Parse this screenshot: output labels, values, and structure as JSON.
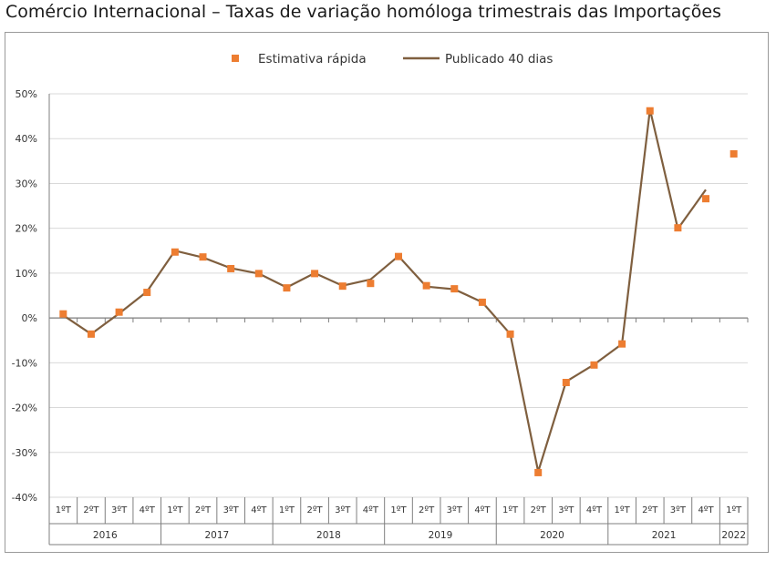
{
  "title": "Comércio Internacional – Taxas de variação homóloga trimestrais das Importações",
  "colors": {
    "marker": "#ED7D31",
    "line": "#7F5F3F",
    "grid": "#D9D9D9",
    "axis": "#7F7F7F"
  },
  "chart_data": {
    "type": "line",
    "title": "Comércio Internacional – Taxas de variação homóloga trimestrais das Importações",
    "xlabel": "",
    "ylabel": "",
    "ylim": [
      -40,
      50
    ],
    "yticks": [
      "50%",
      "40%",
      "30%",
      "20%",
      "10%",
      "0%",
      "-10%",
      "-20%",
      "-30%",
      "-40%"
    ],
    "grid": true,
    "legend_position": "top",
    "categories": [
      "1ºT",
      "2ºT",
      "3ºT",
      "4ºT",
      "1ºT",
      "2ºT",
      "3ºT",
      "4ºT",
      "1ºT",
      "2ºT",
      "3ºT",
      "4ºT",
      "1ºT",
      "2ºT",
      "3ºT",
      "4ºT",
      "1ºT",
      "2ºT",
      "3ºT",
      "4ºT",
      "1ºT",
      "2ºT",
      "3ºT",
      "4ºT",
      "1ºT"
    ],
    "years": [
      {
        "label": "2016",
        "count": 4
      },
      {
        "label": "2017",
        "count": 4
      },
      {
        "label": "2018",
        "count": 4
      },
      {
        "label": "2019",
        "count": 4
      },
      {
        "label": "2020",
        "count": 4
      },
      {
        "label": "2021",
        "count": 4
      },
      {
        "label": "2022",
        "count": 1
      }
    ],
    "series": [
      {
        "name": "Estimativa rápida",
        "kind": "marker",
        "values": [
          0.9,
          -3.6,
          1.3,
          5.7,
          14.7,
          13.6,
          11.0,
          9.9,
          6.7,
          9.9,
          7.1,
          7.7,
          13.7,
          7.2,
          6.5,
          3.5,
          -3.6,
          -34.5,
          -14.4,
          -10.5,
          -5.8,
          46.2,
          20.1,
          26.6,
          36.6
        ]
      },
      {
        "name": "Publicado 40 dias",
        "kind": "line",
        "values": [
          0.6,
          -3.6,
          1.0,
          5.9,
          15.0,
          13.5,
          11.1,
          9.9,
          6.8,
          10.0,
          7.2,
          8.6,
          13.8,
          7.0,
          6.4,
          3.5,
          -3.6,
          -34.3,
          -14.2,
          -10.4,
          -5.8,
          46.5,
          19.9,
          28.6,
          null
        ]
      }
    ]
  }
}
